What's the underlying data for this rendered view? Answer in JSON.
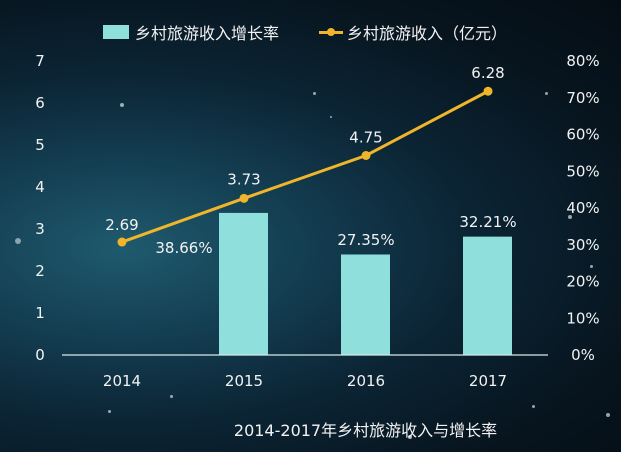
{
  "legend": {
    "bar_label": "乡村旅游收入增长率",
    "line_label": "乡村旅游收入（亿元）"
  },
  "title": "2014-2017年乡村旅游收入与增长率",
  "colors": {
    "bar": "#8fe0dc",
    "line": "#f0b52a",
    "text": "#f2f2f2"
  },
  "chart_data": {
    "type": "bar+line",
    "title": "2014-2017年乡村旅游收入与增长率",
    "categories": [
      "2014",
      "2015",
      "2016",
      "2017"
    ],
    "series": [
      {
        "name": "乡村旅游收入增长率",
        "type": "bar",
        "axis": "right",
        "values": [
          null,
          38.66,
          27.35,
          32.21
        ],
        "labels": [
          "38.66%",
          "27.35%",
          "32.21%"
        ]
      },
      {
        "name": "乡村旅游收入（亿元）",
        "type": "line",
        "axis": "left",
        "values": [
          2.69,
          3.73,
          4.75,
          6.28
        ],
        "labels": [
          "2.69",
          "3.73",
          "4.75",
          "6.28"
        ]
      }
    ],
    "y_left": {
      "range": [
        0,
        7
      ],
      "ticks": [
        "0",
        "1",
        "2",
        "3",
        "4",
        "5",
        "6",
        "7"
      ]
    },
    "y_right": {
      "range": [
        0,
        80
      ],
      "ticks": [
        "0%",
        "10%",
        "20%",
        "30%",
        "40%",
        "50%",
        "60%",
        "70%",
        "80%"
      ]
    },
    "legend_position": "top",
    "grid": false
  }
}
